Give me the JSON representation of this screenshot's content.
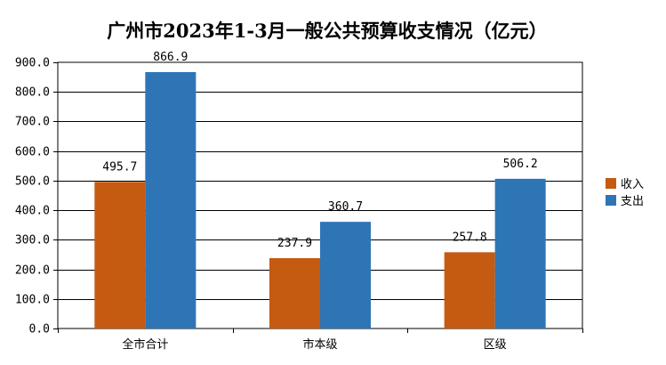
{
  "chart_data": {
    "type": "bar",
    "title": "广州市2023年1-3月一般公共预算收支情况（亿元）",
    "categories": [
      "全市合计",
      "市本级",
      "区级"
    ],
    "series": [
      {
        "name": "收入",
        "color": "#C55A11",
        "values": [
          495.7,
          237.9,
          257.8
        ]
      },
      {
        "name": "支出",
        "color": "#2E75B6",
        "values": [
          866.9,
          360.7,
          506.2
        ]
      }
    ],
    "data_labels": [
      [
        "495.7",
        "237.9",
        "257.8"
      ],
      [
        "866.9",
        "360.7",
        "506.2"
      ]
    ],
    "ylim": [
      0,
      900
    ],
    "yticks": [
      "0.0",
      "100.0",
      "200.0",
      "300.0",
      "400.0",
      "500.0",
      "600.0",
      "700.0",
      "800.0",
      "900.0"
    ],
    "grid": true,
    "legend_position": "right"
  }
}
